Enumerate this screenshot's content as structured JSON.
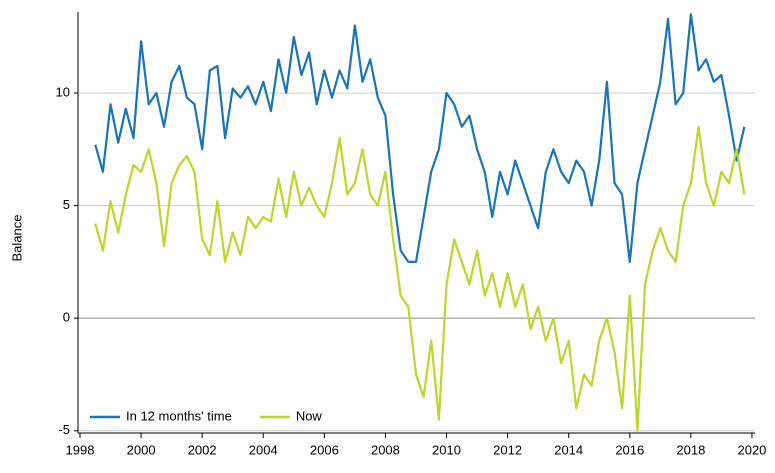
{
  "chart_data": {
    "type": "line",
    "y_label": "Balance",
    "x": [
      1998.5,
      1998.75,
      1999,
      1999.25,
      1999.5,
      1999.75,
      2000,
      2000.25,
      2000.5,
      2000.75,
      2001,
      2001.25,
      2001.5,
      2001.75,
      2002,
      2002.25,
      2002.5,
      2002.75,
      2003,
      2003.25,
      2003.5,
      2003.75,
      2004,
      2004.25,
      2004.5,
      2004.75,
      2005,
      2005.25,
      2005.5,
      2005.75,
      2006,
      2006.25,
      2006.5,
      2006.75,
      2007,
      2007.25,
      2007.5,
      2007.75,
      2008,
      2008.25,
      2008.5,
      2008.75,
      2009,
      2009.25,
      2009.5,
      2009.75,
      2010,
      2010.25,
      2010.5,
      2010.75,
      2011,
      2011.25,
      2011.5,
      2011.75,
      2012,
      2012.25,
      2012.5,
      2012.75,
      2013,
      2013.25,
      2013.5,
      2013.75,
      2014,
      2014.25,
      2014.5,
      2014.75,
      2015,
      2015.25,
      2015.5,
      2015.75,
      2016,
      2016.25,
      2016.5,
      2016.75,
      2017,
      2017.25,
      2017.5,
      2017.75,
      2018,
      2018.25,
      2018.5,
      2018.75,
      2019,
      2019.25,
      2019.5,
      2019.75
    ],
    "series": [
      {
        "name": "In 12 months' time",
        "color": "#1b74b4",
        "values": [
          7.7,
          6.5,
          9.5,
          7.8,
          9.3,
          8.0,
          12.3,
          9.5,
          10.0,
          8.5,
          10.5,
          11.2,
          9.8,
          9.5,
          7.5,
          11.0,
          11.2,
          8.0,
          10.2,
          9.8,
          10.3,
          9.5,
          10.5,
          9.2,
          11.5,
          10.0,
          12.5,
          10.8,
          11.8,
          9.5,
          11.0,
          9.8,
          11.0,
          10.2,
          13.0,
          10.5,
          11.5,
          9.8,
          9.0,
          5.5,
          3.0,
          2.5,
          2.5,
          4.5,
          6.5,
          7.5,
          10.0,
          9.5,
          8.5,
          9.0,
          7.5,
          6.5,
          4.5,
          6.5,
          5.5,
          7.0,
          6.0,
          5.0,
          4.0,
          6.5,
          7.5,
          6.5,
          6.0,
          7.0,
          6.5,
          5.0,
          7.0,
          10.5,
          6.0,
          5.5,
          2.5,
          6.0,
          7.5,
          9.0,
          10.5,
          13.3,
          9.5,
          10.0,
          13.5,
          11.0,
          11.5,
          10.5,
          10.8,
          9.0,
          7.0,
          8.5
        ]
      },
      {
        "name": "Now",
        "color": "#bdd52f",
        "values": [
          4.2,
          3.0,
          5.2,
          3.8,
          5.5,
          6.8,
          6.5,
          7.5,
          6.0,
          3.2,
          6.0,
          6.8,
          7.2,
          6.5,
          3.5,
          2.8,
          5.2,
          2.5,
          3.8,
          2.8,
          4.5,
          4.0,
          4.5,
          4.3,
          6.2,
          4.5,
          6.5,
          5.0,
          5.8,
          5.0,
          4.5,
          6.0,
          8.0,
          5.5,
          6.0,
          7.5,
          5.5,
          5.0,
          6.5,
          3.5,
          1.0,
          0.5,
          -2.5,
          -3.5,
          -1.0,
          -4.5,
          1.5,
          3.5,
          2.5,
          1.5,
          3.0,
          1.0,
          2.0,
          0.5,
          2.0,
          0.5,
          1.5,
          -0.5,
          0.5,
          -1.0,
          0.0,
          -2.0,
          -1.0,
          -4.0,
          -2.5,
          -3.0,
          -1.0,
          0.0,
          -1.5,
          -4.0,
          1.0,
          -5.0,
          1.5,
          3.0,
          4.0,
          3.0,
          2.5,
          5.0,
          6.0,
          8.5,
          6.0,
          5.0,
          6.5,
          6.0,
          7.5,
          5.5
        ]
      }
    ],
    "xlim": [
      1998,
      2020.1
    ],
    "ylim": [
      -5.1,
      13.6
    ],
    "xticks": [
      1998,
      2000,
      2002,
      2004,
      2006,
      2008,
      2010,
      2012,
      2014,
      2016,
      2018,
      2020
    ],
    "yticks": [
      -5,
      0,
      5,
      10
    ],
    "grid": true,
    "legend": "lower left"
  }
}
